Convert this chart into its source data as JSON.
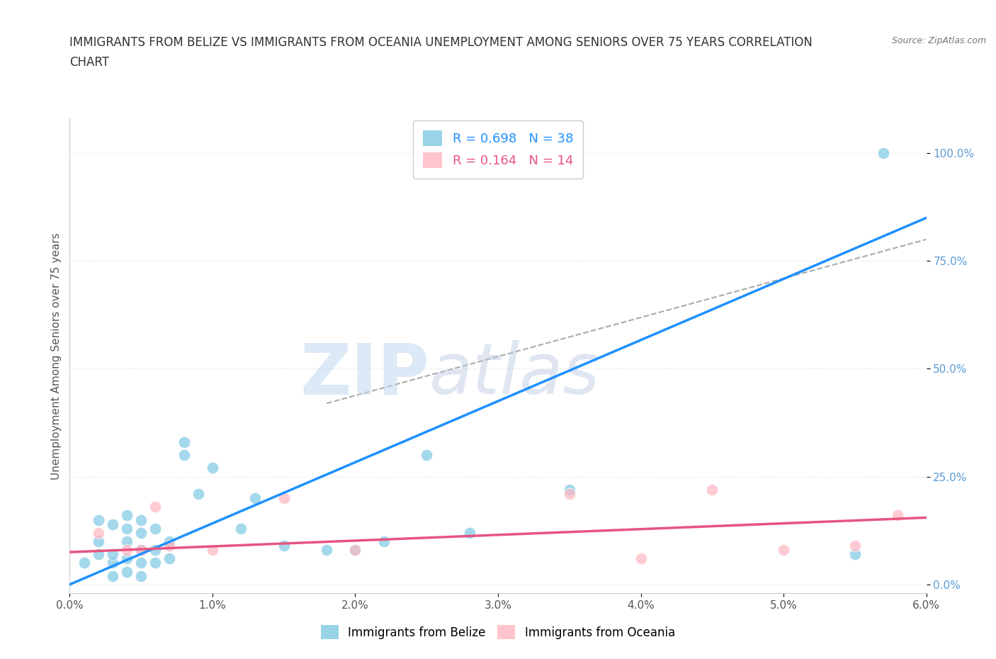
{
  "title_line1": "IMMIGRANTS FROM BELIZE VS IMMIGRANTS FROM OCEANIA UNEMPLOYMENT AMONG SENIORS OVER 75 YEARS CORRELATION",
  "title_line2": "CHART",
  "source": "Source: ZipAtlas.com",
  "ylabel": "Unemployment Among Seniors over 75 years",
  "xlim": [
    0.0,
    0.06
  ],
  "ylim": [
    -0.02,
    1.08
  ],
  "xticks": [
    0.0,
    0.01,
    0.02,
    0.03,
    0.04,
    0.05,
    0.06
  ],
  "xticklabels": [
    "0.0%",
    "1.0%",
    "2.0%",
    "3.0%",
    "4.0%",
    "5.0%",
    "6.0%"
  ],
  "yticks": [
    0.0,
    0.25,
    0.5,
    0.75,
    1.0
  ],
  "yticklabels": [
    "0.0%",
    "25.0%",
    "50.0%",
    "75.0%",
    "100.0%"
  ],
  "belize_color": "#7ec8e3",
  "oceania_color": "#ffb6c1",
  "belize_line_color": "#1e90ff",
  "oceania_line_color": "#e75480",
  "legend_R_belize": "R = 0.698   N = 38",
  "legend_R_oceania": "R = 0.164   N = 14",
  "legend_label_belize": "Immigrants from Belize",
  "legend_label_oceania": "Immigrants from Oceania",
  "watermark_zip": "ZIP",
  "watermark_atlas": "atlas",
  "belize_scatter_x": [
    0.001,
    0.002,
    0.002,
    0.002,
    0.003,
    0.003,
    0.003,
    0.003,
    0.004,
    0.004,
    0.004,
    0.004,
    0.004,
    0.005,
    0.005,
    0.005,
    0.005,
    0.005,
    0.006,
    0.006,
    0.006,
    0.007,
    0.007,
    0.008,
    0.008,
    0.009,
    0.01,
    0.012,
    0.013,
    0.015,
    0.018,
    0.02,
    0.022,
    0.025,
    0.028,
    0.035,
    0.055,
    0.057
  ],
  "belize_scatter_y": [
    0.05,
    0.07,
    0.1,
    0.15,
    0.02,
    0.05,
    0.07,
    0.14,
    0.03,
    0.06,
    0.1,
    0.13,
    0.16,
    0.02,
    0.05,
    0.08,
    0.12,
    0.15,
    0.05,
    0.08,
    0.13,
    0.06,
    0.1,
    0.3,
    0.33,
    0.21,
    0.27,
    0.13,
    0.2,
    0.09,
    0.08,
    0.08,
    0.1,
    0.3,
    0.12,
    0.22,
    0.07,
    1.0
  ],
  "oceania_scatter_x": [
    0.002,
    0.004,
    0.005,
    0.006,
    0.007,
    0.01,
    0.015,
    0.02,
    0.035,
    0.04,
    0.045,
    0.05,
    0.055,
    0.058
  ],
  "oceania_scatter_y": [
    0.12,
    0.08,
    0.08,
    0.18,
    0.09,
    0.08,
    0.2,
    0.08,
    0.21,
    0.06,
    0.22,
    0.08,
    0.09,
    0.16
  ],
  "belize_trend_x0": 0.0,
  "belize_trend_y0": 0.0,
  "belize_trend_x1": 0.06,
  "belize_trend_y1": 0.85,
  "oceania_trend_x0": 0.0,
  "oceania_trend_y0": 0.075,
  "oceania_trend_x1": 0.06,
  "oceania_trend_y1": 0.155,
  "ref_line_x0": 0.018,
  "ref_line_y0": 0.42,
  "ref_line_x1": 0.06,
  "ref_line_y1": 0.8,
  "background_color": "#ffffff",
  "grid_color": "#e0e0e0"
}
